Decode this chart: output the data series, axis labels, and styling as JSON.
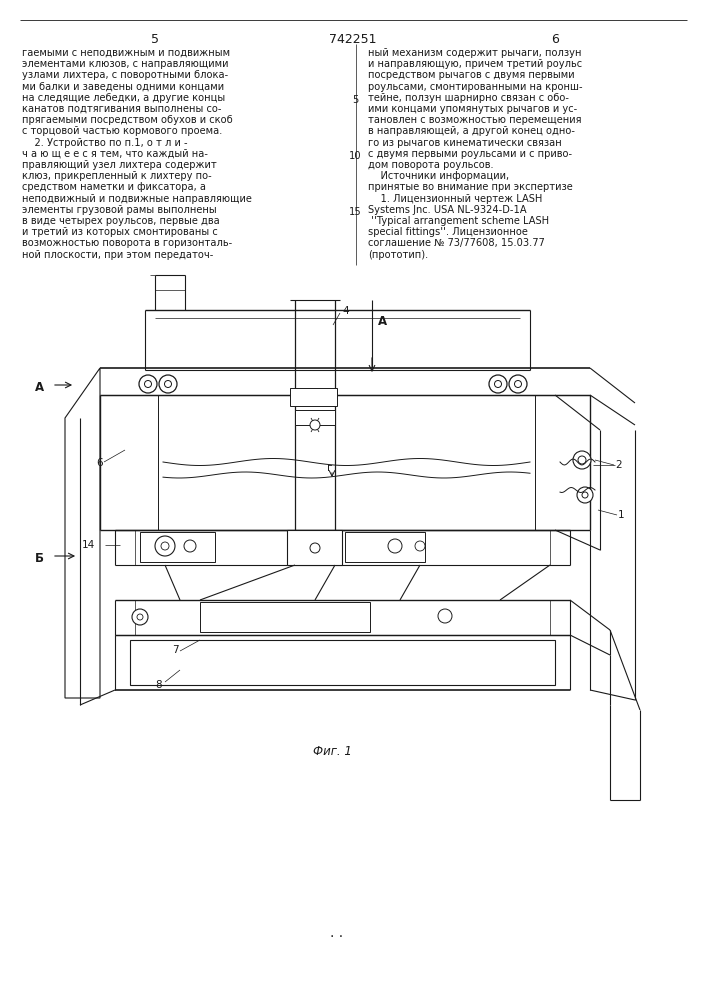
{
  "page_number_left": "5",
  "page_number_center": "742251",
  "page_number_right": "6",
  "text_left_lines": [
    "гаемыми с неподвижным и подвижным",
    "элементами клюзов, с направляющими",
    "узлами лихтера, с поворотными блока-",
    "ми балки и заведены одними концами",
    "на следящие лебедки, а другие концы",
    "канатов подтягивания выполнены со-",
    "прягаемыми посредством обухов и скоб",
    "с торцовой частью кормового проема.",
    "    2. Устройство по п.1, о т л и -",
    "ч а ю щ е е с я тем, что каждый на-",
    "правляющий узел лихтера содержит",
    "клюз, прикрепленный к лихтеру по-",
    "средством наметки и фиксатора, а",
    "неподвижный и подвижные направляющие",
    "элементы грузовой рамы выполнены",
    "в виде четырех роульсов, первые два",
    "и третий из которых смонтированы с",
    "возможностью поворота в горизонталь-",
    "ной плоскости, при этом передаточ-"
  ],
  "text_right_lines": [
    "ный механизм содержит рычаги, ползун",
    "и направляющую, причем третий роульс",
    "посредством рычагов с двумя первыми",
    "роульсами, смонтированными на кронш-",
    "тейне, ползун шарнирно связан с обо-",
    "ими концами упомянутых рычагов и ус-",
    "тановлен с возможностью перемещения",
    "в направляющей, а другой конец одно-",
    "го из рычагов кинематически связан",
    "с двумя первыми роульсами и с приво-",
    "дом поворота роульсов.",
    "    Источники информации,",
    "принятые во внимание при экспертизе",
    "    1. Лицензионный чертеж LASH",
    "Systems Jnc. USA NL-9324-D-1A",
    " ''Typical arrangement scheme LASH",
    "special fittings''. Лицензионное",
    "соглашение № 73/77608, 15.03.77",
    "(прототип)."
  ],
  "line_nums": [
    [
      5,
      4
    ],
    [
      10,
      9
    ],
    [
      15,
      14
    ]
  ],
  "fig_caption": "Фиг. 1",
  "bg_color": "#ffffff",
  "line_color": "#1a1a1a",
  "text_color": "#1a1a1a"
}
